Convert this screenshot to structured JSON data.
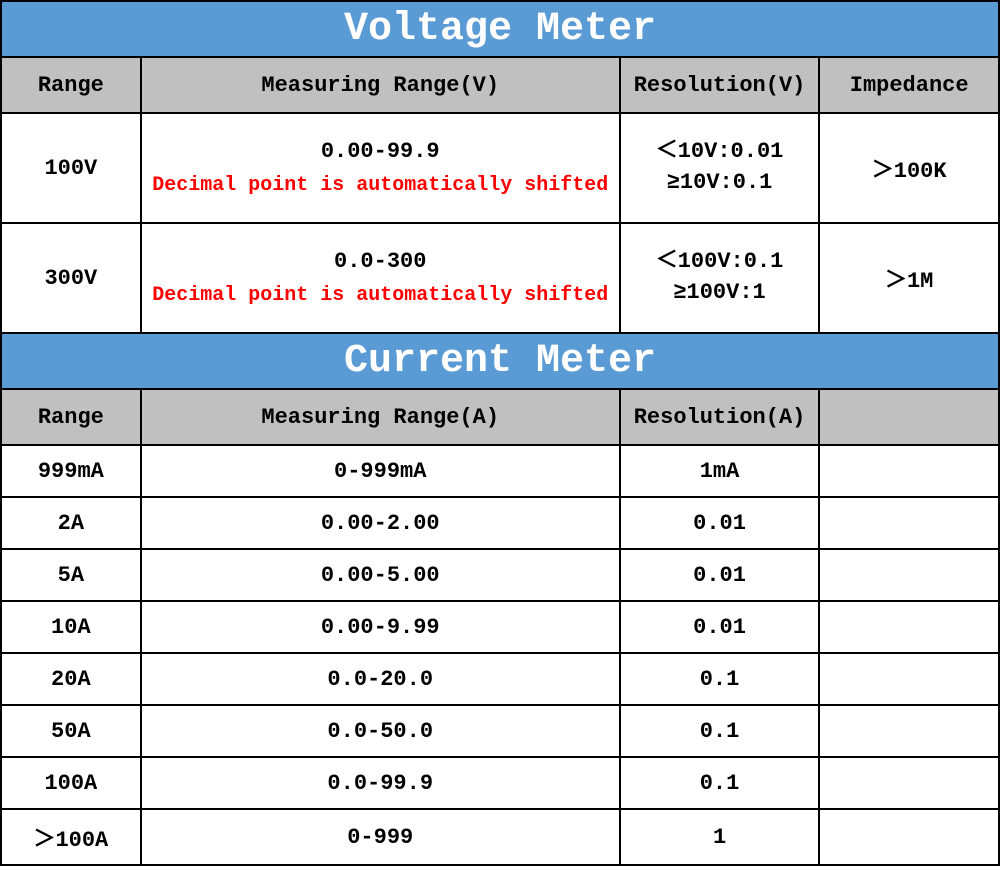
{
  "colors": {
    "title_bg": "#5b9bd5",
    "title_fg": "#ffffff",
    "header_bg": "#c0c0c0",
    "header_fg": "#000000",
    "cell_bg": "#ffffff",
    "cell_fg": "#000000",
    "note_fg": "#ff0000",
    "border": "#000000"
  },
  "typography": {
    "title_fontsize": 40,
    "header_fontsize": 22,
    "cell_fontsize": 22,
    "note_fontsize": 20,
    "font_family": "Courier New"
  },
  "columns": {
    "widths_pct": [
      14,
      48,
      20,
      18
    ]
  },
  "voltage": {
    "title": "Voltage Meter",
    "headers": {
      "range": "Range",
      "measuring": "Measuring Range(V)",
      "resolution": "Resolution(V)",
      "impedance": "Impedance"
    },
    "rows": [
      {
        "range": "100V",
        "measuring": "0.00-99.9",
        "note": "Decimal point is automatically shifted",
        "resolution_line1": "＜10V:0.01",
        "resolution_line2": "≥10V:0.1",
        "impedance": "＞100K"
      },
      {
        "range": "300V",
        "measuring": "0.0-300",
        "note": "Decimal point is automatically shifted",
        "resolution_line1": "＜100V:0.1",
        "resolution_line2": "≥100V:1",
        "impedance": "＞1M"
      }
    ]
  },
  "current": {
    "title": "Current Meter",
    "headers": {
      "range": "Range",
      "measuring": "Measuring Range(A)",
      "resolution": "Resolution(A)",
      "impedance": ""
    },
    "rows": [
      {
        "range": "999mA",
        "measuring": "0-999mA",
        "resolution": "1mA",
        "impedance": ""
      },
      {
        "range": "2A",
        "measuring": "0.00-2.00",
        "resolution": "0.01",
        "impedance": ""
      },
      {
        "range": "5A",
        "measuring": "0.00-5.00",
        "resolution": "0.01",
        "impedance": ""
      },
      {
        "range": "10A",
        "measuring": "0.00-9.99",
        "resolution": "0.01",
        "impedance": ""
      },
      {
        "range": "20A",
        "measuring": "0.0-20.0",
        "resolution": "0.1",
        "impedance": ""
      },
      {
        "range": "50A",
        "measuring": "0.0-50.0",
        "resolution": "0.1",
        "impedance": ""
      },
      {
        "range": "100A",
        "measuring": "0.0-99.9",
        "resolution": "0.1",
        "impedance": ""
      },
      {
        "range": "＞100A",
        "measuring": "0-999",
        "resolution": "1",
        "impedance": ""
      }
    ]
  }
}
